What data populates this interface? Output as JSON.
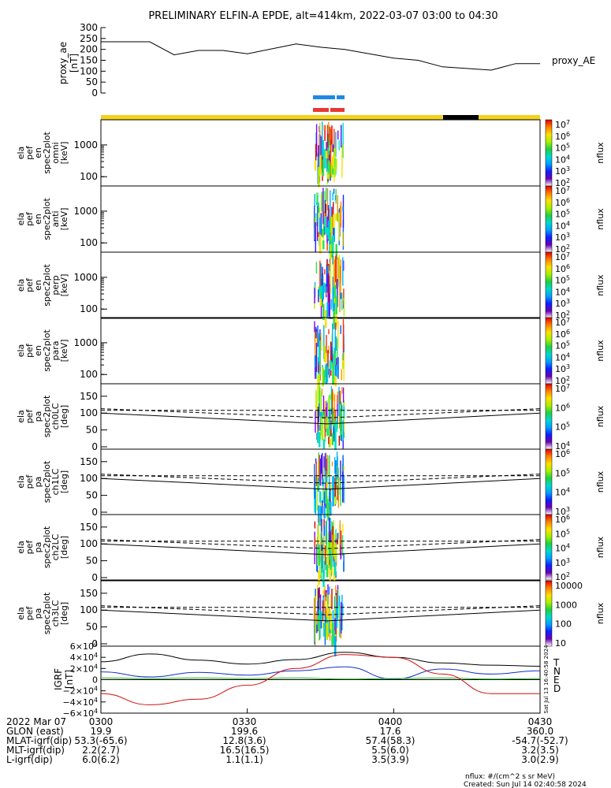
{
  "title": "PRELIMINARY ELFIN-A EPDE, alt=414km, 2022-03-07 03:00 to 04:30",
  "proxy_ae": {
    "ylabel_lines": [
      "proxy_ae",
      "[nT]"
    ],
    "legend": "proxy_AE",
    "yticks": [
      "300",
      "250",
      "200",
      "150",
      "100",
      "50",
      "0"
    ]
  },
  "spec_panels": [
    {
      "label_lines": [
        "ela",
        "pef",
        "en",
        "spec2plot",
        "omni",
        "[keV]"
      ],
      "yticks": [
        "1000",
        "100"
      ],
      "cbar_ticks": [
        "10^7",
        "10^6",
        "10^5",
        "10^4",
        "10^3",
        "10^2"
      ],
      "cbar_label": "nflux"
    },
    {
      "label_lines": [
        "ela",
        "pef",
        "en",
        "spec2plot",
        "anti",
        "[keV]"
      ],
      "yticks": [
        "1000",
        "100"
      ],
      "cbar_ticks": [
        "10^7",
        "10^6",
        "10^5",
        "10^4",
        "10^3",
        "10^2"
      ],
      "cbar_label": "nflux"
    },
    {
      "label_lines": [
        "ela",
        "pef",
        "en",
        "spec2plot",
        "perp",
        "[keV]"
      ],
      "yticks": [
        "1000",
        "100"
      ],
      "cbar_ticks": [
        "10^7",
        "10^6",
        "10^5",
        "10^4",
        "10^3",
        "10^2"
      ],
      "cbar_label": "nflux"
    },
    {
      "label_lines": [
        "ela",
        "pef",
        "en",
        "spec2plot",
        "para",
        "[keV]"
      ],
      "yticks": [
        "1000",
        "100"
      ],
      "cbar_ticks": [
        "10^7",
        "10^6",
        "10^5",
        "10^4",
        "10^3",
        "10^2"
      ],
      "cbar_label": "nflux"
    }
  ],
  "pa_panels": [
    {
      "label_lines": [
        "ela",
        "pef",
        "pa",
        "spec2plot",
        "ch0LC",
        "[deg]"
      ],
      "yticks": [
        "150",
        "100",
        "50",
        "0"
      ],
      "cbar_ticks": [
        "10^7",
        "10^6",
        "10^5",
        "10^4"
      ],
      "cbar_label": "nflux"
    },
    {
      "label_lines": [
        "ela",
        "pef",
        "pa",
        "spec2plot",
        "ch1LC",
        "[deg]"
      ],
      "yticks": [
        "150",
        "100",
        "50",
        "0"
      ],
      "cbar_ticks": [
        "10^6",
        "10^5",
        "10^4",
        "10^3"
      ],
      "cbar_label": "nflux"
    },
    {
      "label_lines": [
        "ela",
        "pef",
        "pa",
        "spec2plot",
        "ch2LC",
        "[deg]"
      ],
      "yticks": [
        "150",
        "100",
        "50",
        "0"
      ],
      "cbar_ticks": [
        "10^6",
        "10^5",
        "10^4",
        "10^3",
        "10^2"
      ],
      "cbar_label": "nflux"
    },
    {
      "label_lines": [
        "ela",
        "pef",
        "pa",
        "spec2plot",
        "ch3LC",
        "[deg]"
      ],
      "yticks": [
        "150",
        "100",
        "50",
        "0"
      ],
      "cbar_ticks": [
        "10000",
        "1000",
        "100",
        "10"
      ],
      "cbar_label": "nflux"
    }
  ],
  "bfield": {
    "label_lines": [
      "IGRF",
      "[nT]"
    ],
    "yticks": [
      "6×10^4",
      "4×10^4",
      "2×10^4",
      "0",
      "−2×10^4",
      "−4×10^4",
      "−6×10^4"
    ],
    "legend": [
      {
        "name": "T",
        "color": "#000000"
      },
      {
        "name": "N",
        "color": "#1030c8"
      },
      {
        "name": "E",
        "color": "#20b020"
      },
      {
        "name": "D",
        "color": "#d01010"
      }
    ],
    "side_stamp": "Sat Jul 13 16:40:58 2024"
  },
  "chart_data": [
    {
      "type": "line",
      "series": [
        {
          "name": "proxy_AE",
          "x": [
            "0300",
            "0310",
            "0315",
            "0320",
            "0325",
            "0330",
            "0340",
            "0345",
            "0350",
            "0400",
            "0405",
            "0410",
            "0420",
            "0425",
            "0430"
          ],
          "values": [
            235,
            235,
            175,
            195,
            195,
            180,
            225,
            210,
            200,
            160,
            150,
            120,
            105,
            135,
            135
          ]
        }
      ],
      "categories": [
        "0300",
        "0330",
        "0400",
        "0430"
      ],
      "ylim": [
        0,
        300
      ]
    },
    {
      "type": "line",
      "series": [
        {
          "name": "T",
          "x": [
            "0300",
            "0310",
            "0320",
            "0330",
            "0340",
            "0350",
            "0400",
            "0410",
            "0420",
            "0430"
          ],
          "values": [
            32000.0,
            46000.0,
            35000.0,
            28000.0,
            36000.0,
            49000.0,
            40000.0,
            30000.0,
            26000.0,
            24000.0
          ]
        },
        {
          "name": "N",
          "x": [
            "0300",
            "0310",
            "0320",
            "0330",
            "0340",
            "0350",
            "0400",
            "0410",
            "0420",
            "0430"
          ],
          "values": [
            14000.0,
            5000.0,
            13000.0,
            8000.0,
            16000.0,
            23000.0,
            1000.0,
            19000.0,
            10000.0,
            16000.0
          ]
        },
        {
          "name": "E",
          "x": [
            "0300",
            "0310",
            "0320",
            "0330",
            "0340",
            "0350",
            "0400",
            "0410",
            "0420",
            "0430"
          ],
          "values": [
            3000.0,
            2000.0,
            3000.0,
            2000.0,
            3000.0,
            1000.0,
            2000.0,
            3000.0,
            1000.0,
            2000.0
          ]
        },
        {
          "name": "D",
          "x": [
            "0300",
            "0310",
            "0320",
            "0330",
            "0340",
            "0350",
            "0400",
            "0410",
            "0420",
            "0430"
          ],
          "values": [
            -25000.0,
            -45000.0,
            -35000.0,
            -10000.0,
            20000.0,
            45000.0,
            40000.0,
            10000.0,
            -25000.0,
            -25000.0
          ]
        }
      ],
      "categories": [
        "0300",
        "0330",
        "0400",
        "0430"
      ],
      "ylim": [
        -60000,
        60000
      ]
    }
  ],
  "footer": {
    "rows": [
      {
        "label": "2022 Mar 07",
        "values": [
          "0300",
          "0330",
          "0400",
          "0430"
        ]
      },
      {
        "label": "GLON (east)",
        "values": [
          "19.9",
          "199.6",
          "17.6",
          "360.0"
        ]
      },
      {
        "label": "MLAT-igrf(dip)",
        "values": [
          "53.3(-65.6)",
          "12.8(3.6)",
          "57.4(58.3)",
          "-54.7(-52.7)"
        ]
      },
      {
        "label": "MLT-igrf(dip)",
        "values": [
          "2.2(2.7)",
          "16.5(16.5)",
          "5.5(6.0)",
          "3.2(3.5)"
        ]
      },
      {
        "label": "L-igrf(dip)",
        "values": [
          "6.0(6.2)",
          "1.1(1.1)",
          "3.5(3.9)",
          "3.0(2.9)"
        ]
      }
    ],
    "note_units": "nflux: #/(cm^2 s sr MeV)",
    "note_created": "Created: Sun Jul 14 02:40:58 2024"
  },
  "colors": {
    "axis": "#000000",
    "status_bar_yellow": "#f5d21a",
    "status_bar_black": "#000000",
    "marker_blue": "#1e88e5",
    "marker_red": "#e53935"
  }
}
